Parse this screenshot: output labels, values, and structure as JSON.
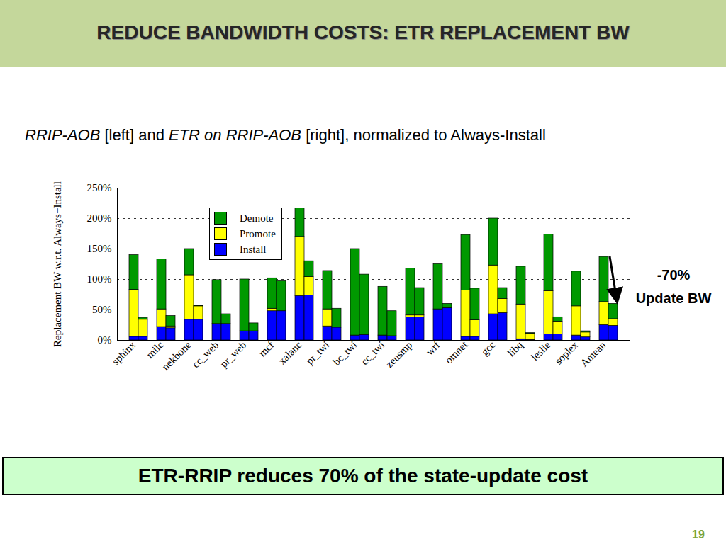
{
  "slide": {
    "title": "REDUCE BANDWIDTH COSTS: ETR REPLACEMENT BW",
    "subtitle": [
      "RRIP-AOB",
      " [left] and ",
      "ETR on RRIP-AOB",
      " [right], normalized to Always-Install"
    ],
    "conclusion": "ETR-RRIP reduces 70% of the state-update cost",
    "page_number": "19"
  },
  "chart_data": {
    "type": "bar",
    "stacked": true,
    "grid": true,
    "legend": "top",
    "y_label": "Replacement BW w.r.t. Always−Install",
    "annotation": [
      "-70%",
      "Update BW"
    ],
    "categories": [
      "sphinx",
      null,
      "milc",
      null,
      "nekbone",
      null,
      "cc_web",
      null,
      "pr_web",
      null,
      "mcf",
      null,
      "xalanc",
      null,
      "pr_twi",
      null,
      "bc_twi",
      null,
      "cc_twi",
      null,
      "zeusmp",
      null,
      "wrf",
      null,
      "omnet",
      null,
      "gcc",
      null,
      "libq",
      null,
      "leslie",
      null,
      "soplex",
      null,
      "Amean",
      null
    ],
    "series": [
      {
        "name": "Demote",
        "color": "#009900",
        "values": [
          57,
          3,
          82,
          17,
          43,
          1,
          72,
          16,
          85,
          13,
          50,
          49,
          47,
          26,
          63,
          31,
          142,
          99,
          80,
          41,
          77,
          45,
          74,
          7,
          91,
          52,
          77,
          18,
          62,
          1,
          93,
          7,
          57,
          2,
          74,
          25
        ]
      },
      {
        "name": "Promote",
        "color": "#ffff00",
        "values": [
          77,
          28,
          29,
          3,
          73,
          22,
          0,
          0,
          0,
          0,
          4,
          0,
          97,
          30,
          28,
          0,
          0,
          0,
          0,
          0,
          3,
          3,
          0,
          0,
          76,
          27,
          80,
          23,
          57,
          10,
          71,
          21,
          48,
          8,
          38,
          11
        ]
      },
      {
        "name": "Install",
        "color": "#0000ff",
        "values": [
          6,
          6,
          22,
          20,
          34,
          34,
          27,
          27,
          15,
          15,
          48,
          48,
          73,
          74,
          23,
          21,
          8,
          9,
          8,
          7,
          38,
          38,
          51,
          53,
          6,
          6,
          43,
          45,
          2,
          1,
          10,
          10,
          8,
          5,
          25,
          24
        ]
      }
    ],
    "ylim": [
      0,
      250
    ],
    "yticks": [
      {
        "value": 0,
        "label": "0%"
      },
      {
        "value": 50,
        "label": "50%"
      },
      {
        "value": 100,
        "label": "100%"
      },
      {
        "value": 150,
        "label": "150%"
      },
      {
        "value": 200,
        "label": "200%"
      },
      {
        "value": 250,
        "label": "250%"
      }
    ]
  }
}
